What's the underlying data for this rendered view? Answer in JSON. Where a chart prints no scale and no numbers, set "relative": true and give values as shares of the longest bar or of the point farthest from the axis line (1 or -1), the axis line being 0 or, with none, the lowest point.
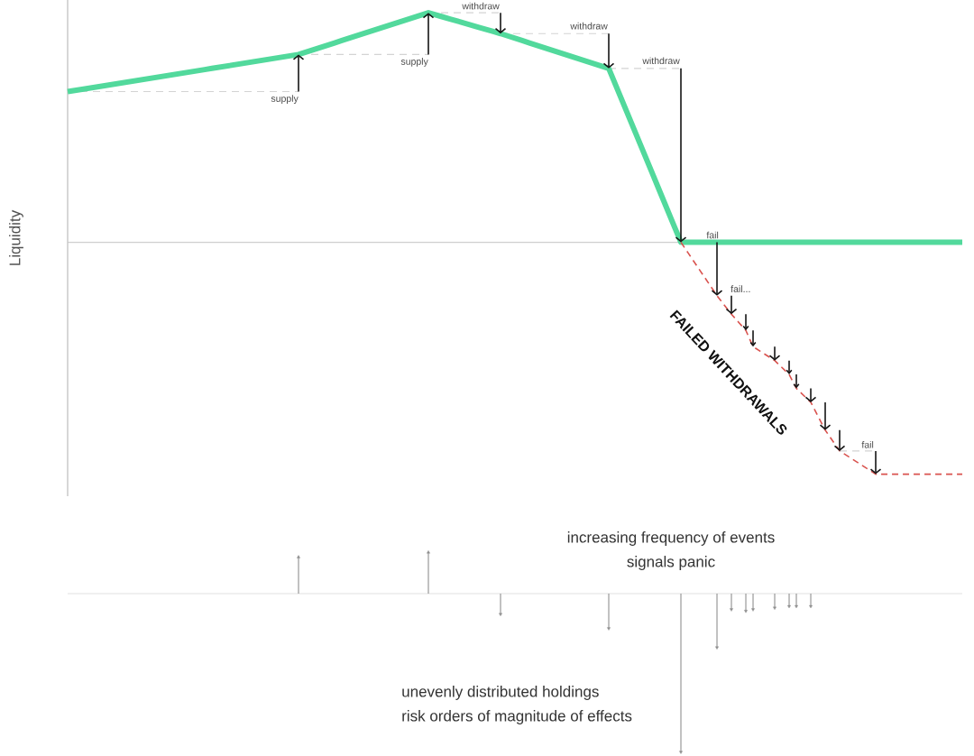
{
  "chart_data": [
    {
      "type": "line",
      "relative": true,
      "ylabel": "Liquidity",
      "marker": "none",
      "categories": [
        null,
        null,
        null,
        null,
        null,
        null,
        null,
        null,
        null,
        null,
        null,
        null,
        null,
        null,
        null,
        null,
        null,
        null,
        null,
        null,
        null,
        null,
        null,
        null,
        null,
        null,
        null,
        null,
        null,
        null,
        null,
        null,
        null,
        null,
        null,
        null,
        null,
        null,
        null,
        null,
        null,
        null,
        null,
        null,
        null,
        null,
        null,
        null,
        null,
        null,
        null,
        null,
        null,
        null,
        null,
        null,
        null,
        null,
        null,
        null,
        null,
        null,
        null,
        null,
        null,
        null,
        null,
        null,
        null,
        null,
        null,
        null,
        null,
        null,
        null,
        null,
        null,
        null,
        null,
        null,
        null,
        null,
        null,
        null,
        null,
        null,
        null,
        null,
        null,
        null,
        null,
        null,
        null,
        null,
        null,
        null,
        null,
        null,
        null,
        null,
        null,
        null,
        null,
        null,
        null,
        null,
        null,
        null,
        null,
        null,
        null,
        null,
        null,
        null,
        null,
        null,
        null,
        null,
        null,
        null,
        null,
        null,
        null,
        null,
        null
      ],
      "series": [
        {
          "color": "#52d99c",
          "values": [
            0.65,
            0.655,
            0.66,
            0.665,
            0.67,
            0.675,
            0.68,
            0.685,
            0.69,
            0.695,
            0.7,
            0.705,
            0.71,
            0.715,
            0.72,
            0.725,
            0.73,
            0.735,
            0.74,
            0.745,
            0.75,
            0.755,
            0.76,
            0.765,
            0.77,
            0.775,
            0.78,
            0.785,
            0.79,
            0.795,
            0.8,
            0.805,
            0.81,
            0.82,
            0.83,
            0.84,
            0.85,
            0.86,
            0.87,
            0.88,
            0.89,
            0.9,
            0.91,
            0.92,
            0.93,
            0.94,
            0.95,
            0.96,
            0.97,
            0.98,
            0.99,
            0.981,
            0.972,
            0.963,
            0.954,
            0.945,
            0.936,
            0.927,
            0.918,
            0.909,
            0.9,
            0.89,
            0.88,
            0.87,
            0.86,
            0.85,
            0.84,
            0.83,
            0.82,
            0.81,
            0.8,
            0.79,
            0.78,
            0.77,
            0.76,
            0.75,
            0.675,
            0.6,
            0.525,
            0.45,
            0.375,
            0.3,
            0.225,
            0.15,
            0.075,
            0,
            0,
            0,
            0,
            0,
            0,
            0,
            0,
            0,
            0,
            0,
            0,
            0,
            0,
            0,
            0,
            0,
            0,
            0,
            0,
            0,
            0,
            0,
            0,
            0,
            0,
            0,
            0,
            0,
            0,
            0,
            0,
            0,
            0,
            0,
            0,
            0,
            0,
            0,
            0
          ]
        },
        {
          "color": "#d9534f",
          "line_style": "dashed",
          "values": [
            null,
            null,
            null,
            null,
            null,
            null,
            null,
            null,
            null,
            null,
            null,
            null,
            null,
            null,
            null,
            null,
            null,
            null,
            null,
            null,
            null,
            null,
            null,
            null,
            null,
            null,
            null,
            null,
            null,
            null,
            null,
            null,
            null,
            null,
            null,
            null,
            null,
            null,
            null,
            null,
            null,
            null,
            null,
            null,
            null,
            null,
            null,
            null,
            null,
            null,
            null,
            null,
            null,
            null,
            null,
            null,
            null,
            null,
            null,
            null,
            null,
            null,
            null,
            null,
            null,
            null,
            null,
            null,
            null,
            null,
            null,
            null,
            null,
            null,
            null,
            null,
            null,
            null,
            null,
            null,
            null,
            null,
            null,
            null,
            null,
            0,
            -0.046,
            -0.092,
            -0.138,
            -0.184,
            -0.23,
            -0.27,
            -0.31,
            -0.345,
            -0.38,
            -0.45,
            -0.47,
            -0.49,
            -0.51,
            -0.54,
            -0.57,
            -0.63,
            -0.66,
            -0.69,
            -0.75,
            -0.81,
            -0.855,
            -0.9,
            -0.92,
            -0.94,
            -0.96,
            -0.98,
            -1,
            -1,
            -1,
            -1,
            -1,
            -1,
            -1,
            -1,
            -1,
            -1,
            -1,
            -1,
            -1
          ]
        }
      ],
      "annotations": [
        "supply",
        "supply",
        "withdraw",
        "withdraw",
        "withdraw",
        "fail",
        "fail...",
        "fail",
        "FAILED WITHDRAWALS"
      ]
    },
    {
      "type": "lollipop",
      "relative": true,
      "marker": "triangle",
      "color": "#8f8f8f",
      "categories": [
        null,
        null,
        null,
        null,
        null,
        null,
        null,
        null,
        null,
        null,
        null,
        null,
        null,
        null,
        null,
        null,
        null,
        null,
        null,
        null,
        null,
        null,
        null,
        null,
        null,
        null,
        null,
        null,
        null,
        null,
        null,
        null,
        null,
        null,
        null,
        null,
        null,
        null,
        null,
        null,
        null,
        null,
        null,
        null,
        null,
        null,
        null,
        null,
        null,
        null,
        null,
        null,
        null,
        null,
        null,
        null,
        null,
        null,
        null,
        null,
        null,
        null,
        null,
        null,
        null,
        null,
        null,
        null,
        null,
        null,
        null,
        null,
        null,
        null,
        null,
        null,
        null,
        null,
        null,
        null,
        null,
        null,
        null,
        null,
        null,
        null,
        null,
        null,
        null,
        null,
        null,
        null,
        null,
        null,
        null,
        null,
        null,
        null,
        null,
        null,
        null,
        null,
        null,
        null,
        null,
        null,
        null,
        null,
        null,
        null,
        null,
        null,
        null,
        null,
        null,
        null,
        null,
        null,
        null,
        null,
        null,
        null,
        null,
        null,
        null
      ],
      "values": [
        null,
        null,
        null,
        null,
        null,
        null,
        null,
        null,
        null,
        null,
        null,
        null,
        null,
        null,
        null,
        null,
        null,
        null,
        null,
        null,
        null,
        null,
        null,
        null,
        null,
        null,
        null,
        null,
        null,
        null,
        null,
        null,
        0.23,
        null,
        null,
        null,
        null,
        null,
        null,
        null,
        null,
        null,
        null,
        null,
        null,
        null,
        null,
        null,
        null,
        null,
        0.26,
        null,
        null,
        null,
        null,
        null,
        null,
        null,
        null,
        null,
        -0.13,
        null,
        null,
        null,
        null,
        null,
        null,
        null,
        null,
        null,
        null,
        null,
        null,
        null,
        null,
        -0.22,
        null,
        null,
        null,
        null,
        null,
        null,
        null,
        null,
        null,
        -1,
        null,
        null,
        null,
        null,
        -0.34,
        null,
        -0.1,
        null,
        -0.11,
        -0.1,
        null,
        null,
        -0.09,
        null,
        -0.08,
        -0.08,
        null,
        -0.08,
        null,
        null,
        null,
        null,
        null,
        null,
        null,
        null,
        null,
        null,
        null,
        null,
        null,
        null,
        null,
        null,
        null,
        null,
        null,
        null,
        null
      ],
      "annotations": [
        "increasing frequency of events",
        "signals panic",
        "unevenly distributed holdings",
        "risk orders of magnitude of effects"
      ]
    }
  ]
}
